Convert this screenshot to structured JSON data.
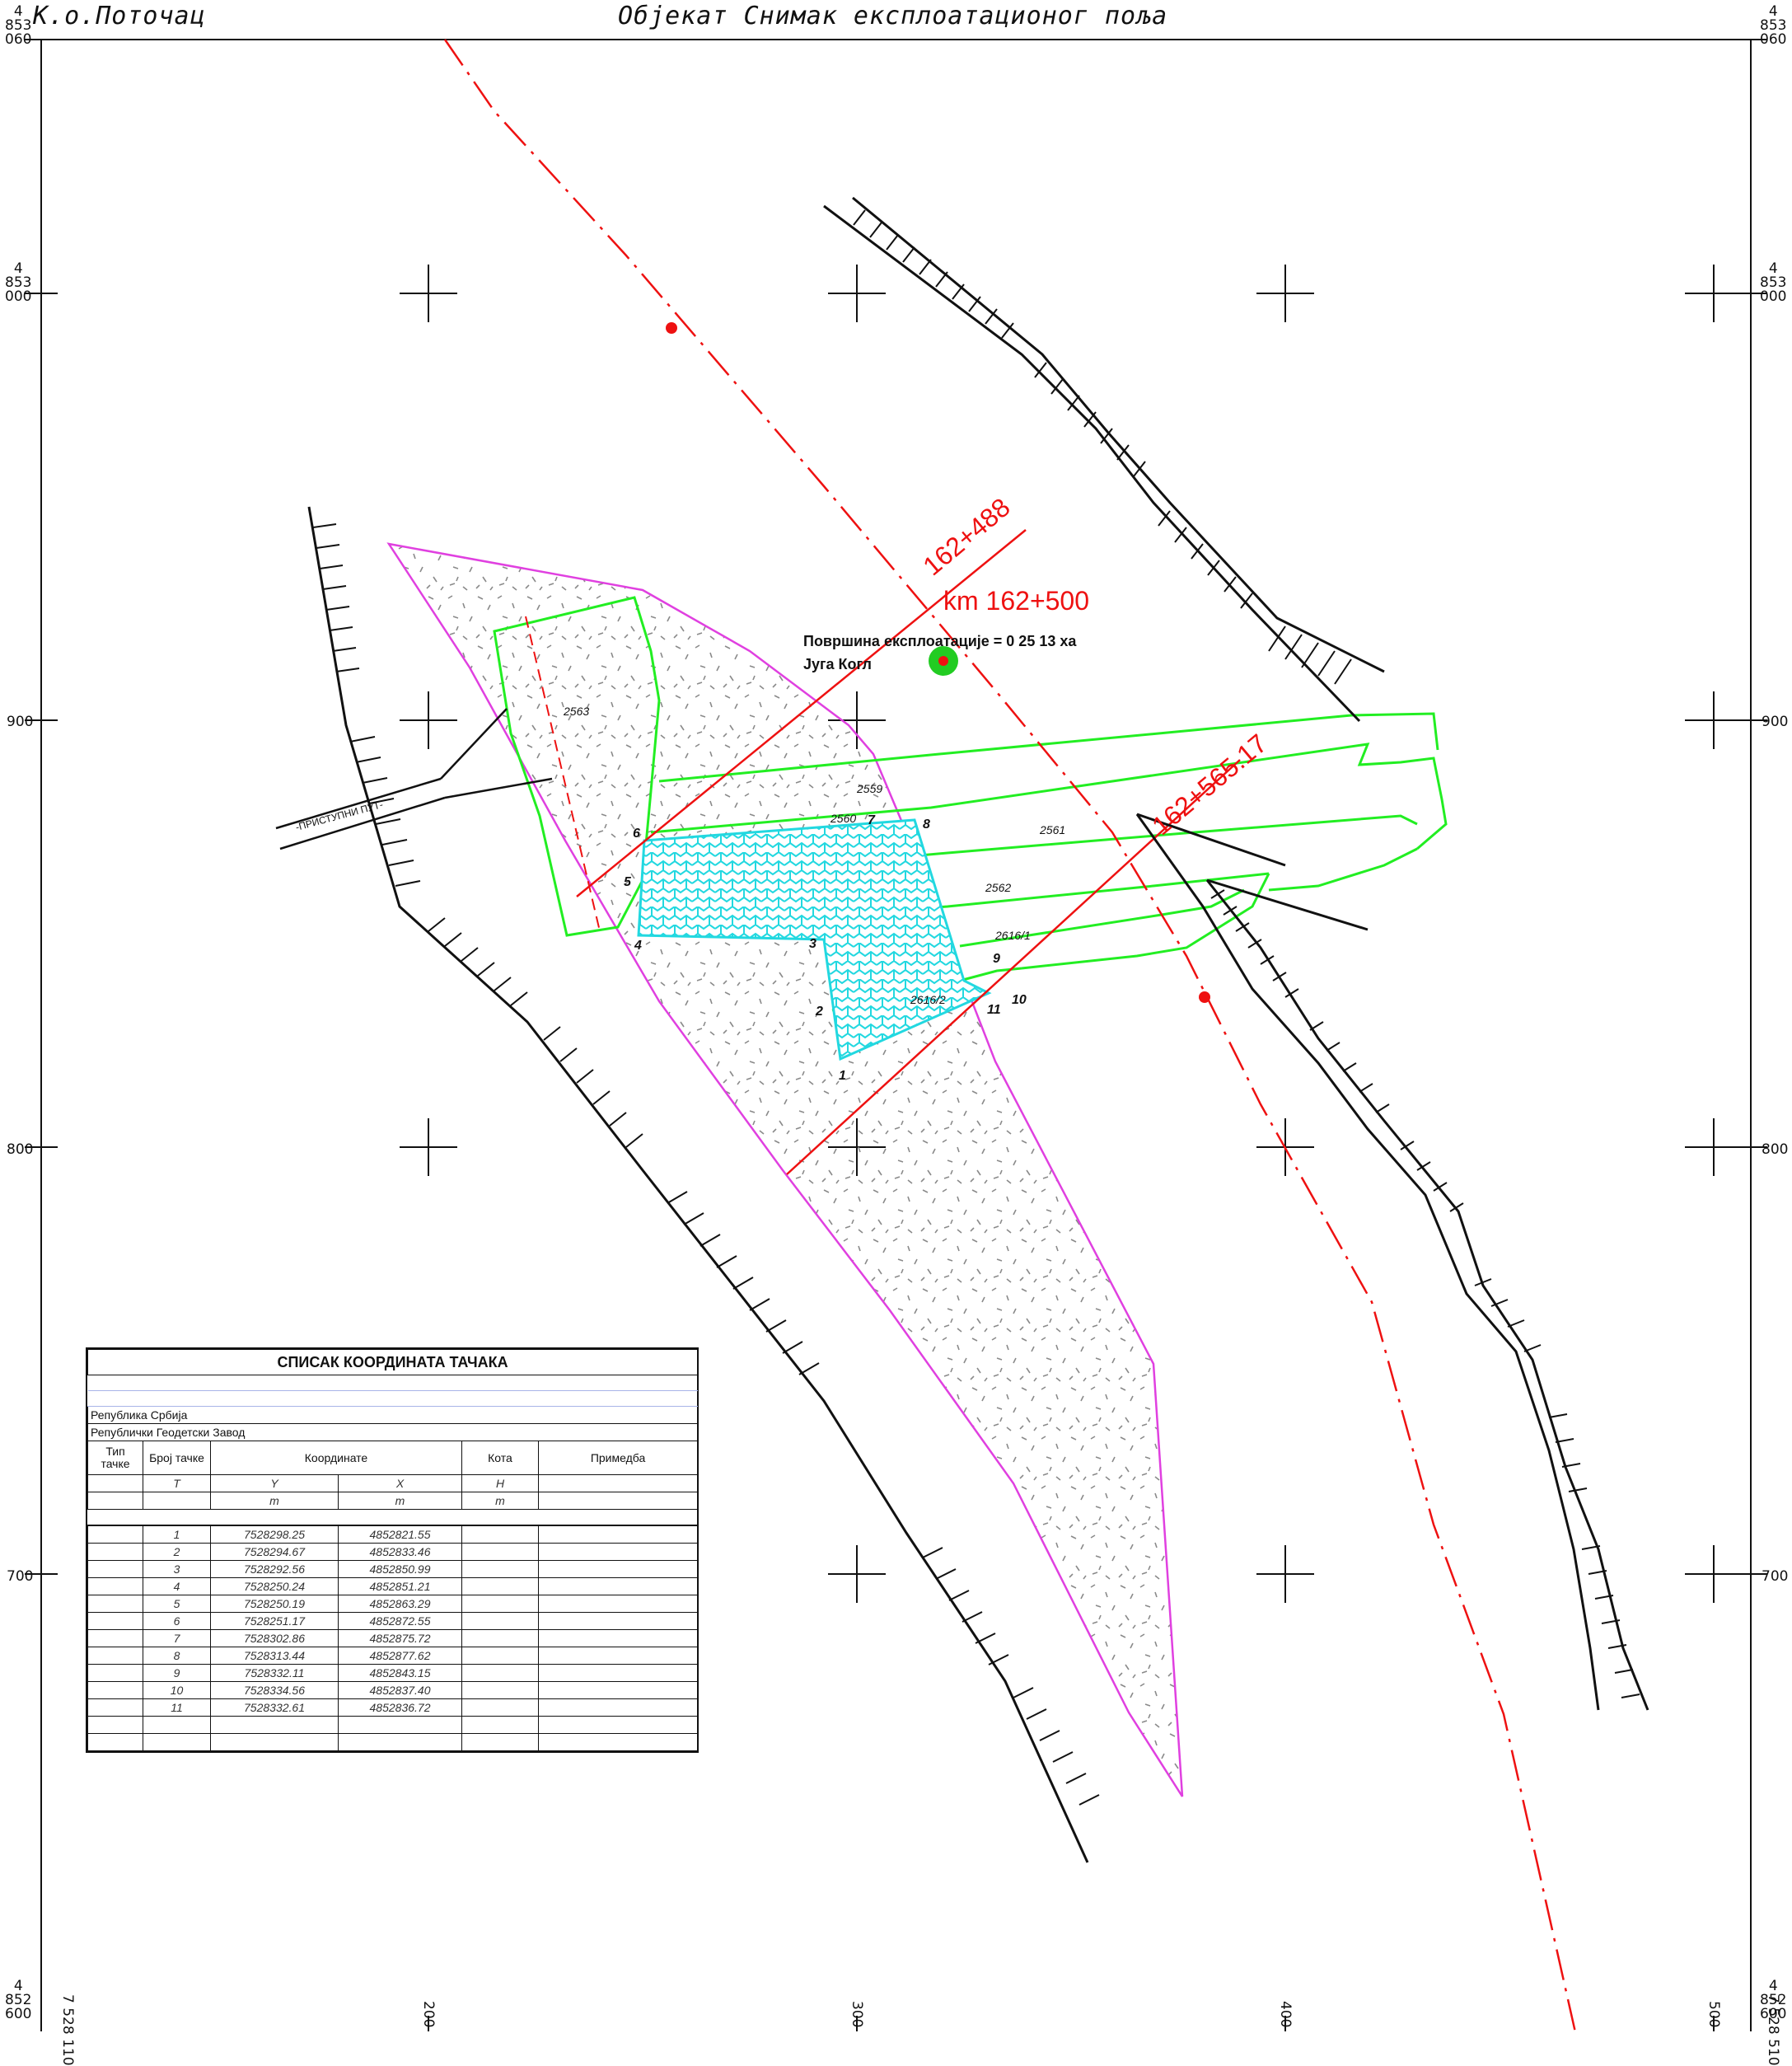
{
  "header": {
    "left": "К.о.Поточац",
    "title": "Објекат Снимак експлоатационог поља"
  },
  "grid": {
    "corner_labels": {
      "top_left": [
        "4",
        "853",
        "060"
      ],
      "top_right": [
        "4",
        "853",
        "060"
      ],
      "bottom_left": [
        "4",
        "852",
        "600"
      ],
      "bottom_right": [
        "4",
        "852",
        "600"
      ],
      "row_000_left": [
        "4",
        "853",
        "000"
      ],
      "row_000_right": [
        "4",
        "853",
        "000"
      ]
    },
    "y_labels": [
      "900",
      "800",
      "700"
    ],
    "x_labels": [
      "7 528 110",
      "200",
      "300",
      "400",
      "500",
      "7 528 510"
    ]
  },
  "map": {
    "stations": [
      "162+488",
      "km 162+500",
      "162+565.17"
    ],
    "area_text": "Површина експлоатације = 0 25 13 ха",
    "owner_text": "Југа Когл",
    "road_label": "-ПРИСТУПНИ ПУТ-",
    "parcels": [
      "2563",
      "2559",
      "2560",
      "2561",
      "2562",
      "2616/1",
      "2616/2"
    ],
    "points": [
      "1",
      "2",
      "3",
      "4",
      "5",
      "6",
      "7",
      "8",
      "9",
      "10",
      "11"
    ],
    "colors": {
      "exploitation_boundary": "#e040e0",
      "parcels": "#22ee22",
      "hatch": "#22e0e0",
      "axis": "#ee1111",
      "embankment": "#111111"
    }
  },
  "table": {
    "title": "СПИСАК КООРДИНАТА ТАЧАКА",
    "line1": "Република Србија",
    "line2": "Републички Геодетски Завод",
    "headers": {
      "type": "Тип тачке",
      "number": "Број тачке",
      "coords": "Координате",
      "elev": "Кота",
      "note": "Примедба"
    },
    "subheaders": [
      "T",
      "Y",
      "X",
      "H"
    ],
    "units": [
      "m",
      "m",
      "m"
    ],
    "rows": [
      {
        "n": "1",
        "y": "7528298.25",
        "x": "4852821.55"
      },
      {
        "n": "2",
        "y": "7528294.67",
        "x": "4852833.46"
      },
      {
        "n": "3",
        "y": "7528292.56",
        "x": "4852850.99"
      },
      {
        "n": "4",
        "y": "7528250.24",
        "x": "4852851.21"
      },
      {
        "n": "5",
        "y": "7528250.19",
        "x": "4852863.29"
      },
      {
        "n": "6",
        "y": "7528251.17",
        "x": "4852872.55"
      },
      {
        "n": "7",
        "y": "7528302.86",
        "x": "4852875.72"
      },
      {
        "n": "8",
        "y": "7528313.44",
        "x": "4852877.62"
      },
      {
        "n": "9",
        "y": "7528332.11",
        "x": "4852843.15"
      },
      {
        "n": "10",
        "y": "7528334.56",
        "x": "4852837.40"
      },
      {
        "n": "11",
        "y": "7528332.61",
        "x": "4852836.72"
      }
    ]
  }
}
